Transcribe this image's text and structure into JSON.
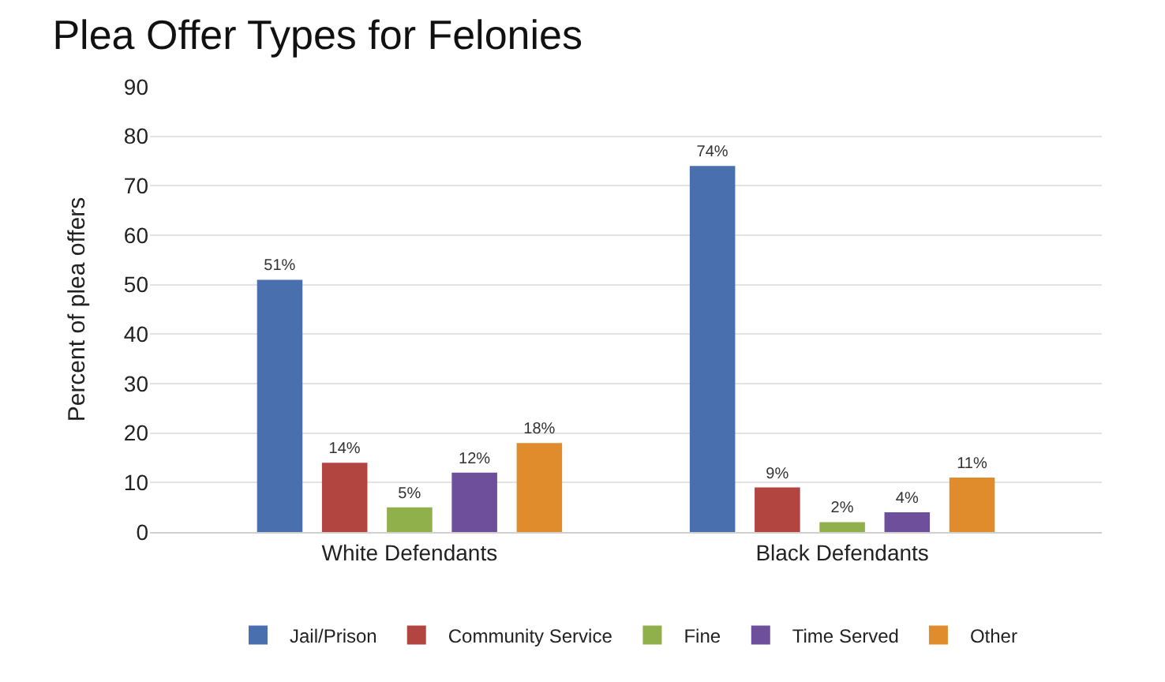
{
  "chart_data": {
    "type": "bar",
    "title": "Plea Offer Types for Felonies",
    "ylabel": "Percent of plea offers",
    "categories": [
      "White Defendants",
      "Black Defendants"
    ],
    "series": [
      {
        "name": "Jail/Prison",
        "color": "#4a6fae",
        "values": [
          51,
          74
        ],
        "value_labels": [
          "51%",
          "74%"
        ]
      },
      {
        "name": "Community Service",
        "color": "#b2453f",
        "values": [
          14,
          9
        ],
        "value_labels": [
          "14%",
          "9%"
        ]
      },
      {
        "name": "Fine",
        "color": "#8fb04a",
        "values": [
          5,
          2
        ],
        "value_labels": [
          "5%",
          "2%"
        ]
      },
      {
        "name": "Time Served",
        "color": "#6e4f9c",
        "values": [
          12,
          4
        ],
        "value_labels": [
          "12%",
          "4%"
        ]
      },
      {
        "name": "Other",
        "color": "#e08c2c",
        "values": [
          18,
          11
        ],
        "value_labels": [
          "18%",
          "11%"
        ]
      }
    ],
    "ylim": [
      0,
      90
    ],
    "yticks": [
      0,
      10,
      20,
      30,
      40,
      50,
      60,
      70,
      80,
      90
    ],
    "grid": "y",
    "legend": "bottom"
  }
}
